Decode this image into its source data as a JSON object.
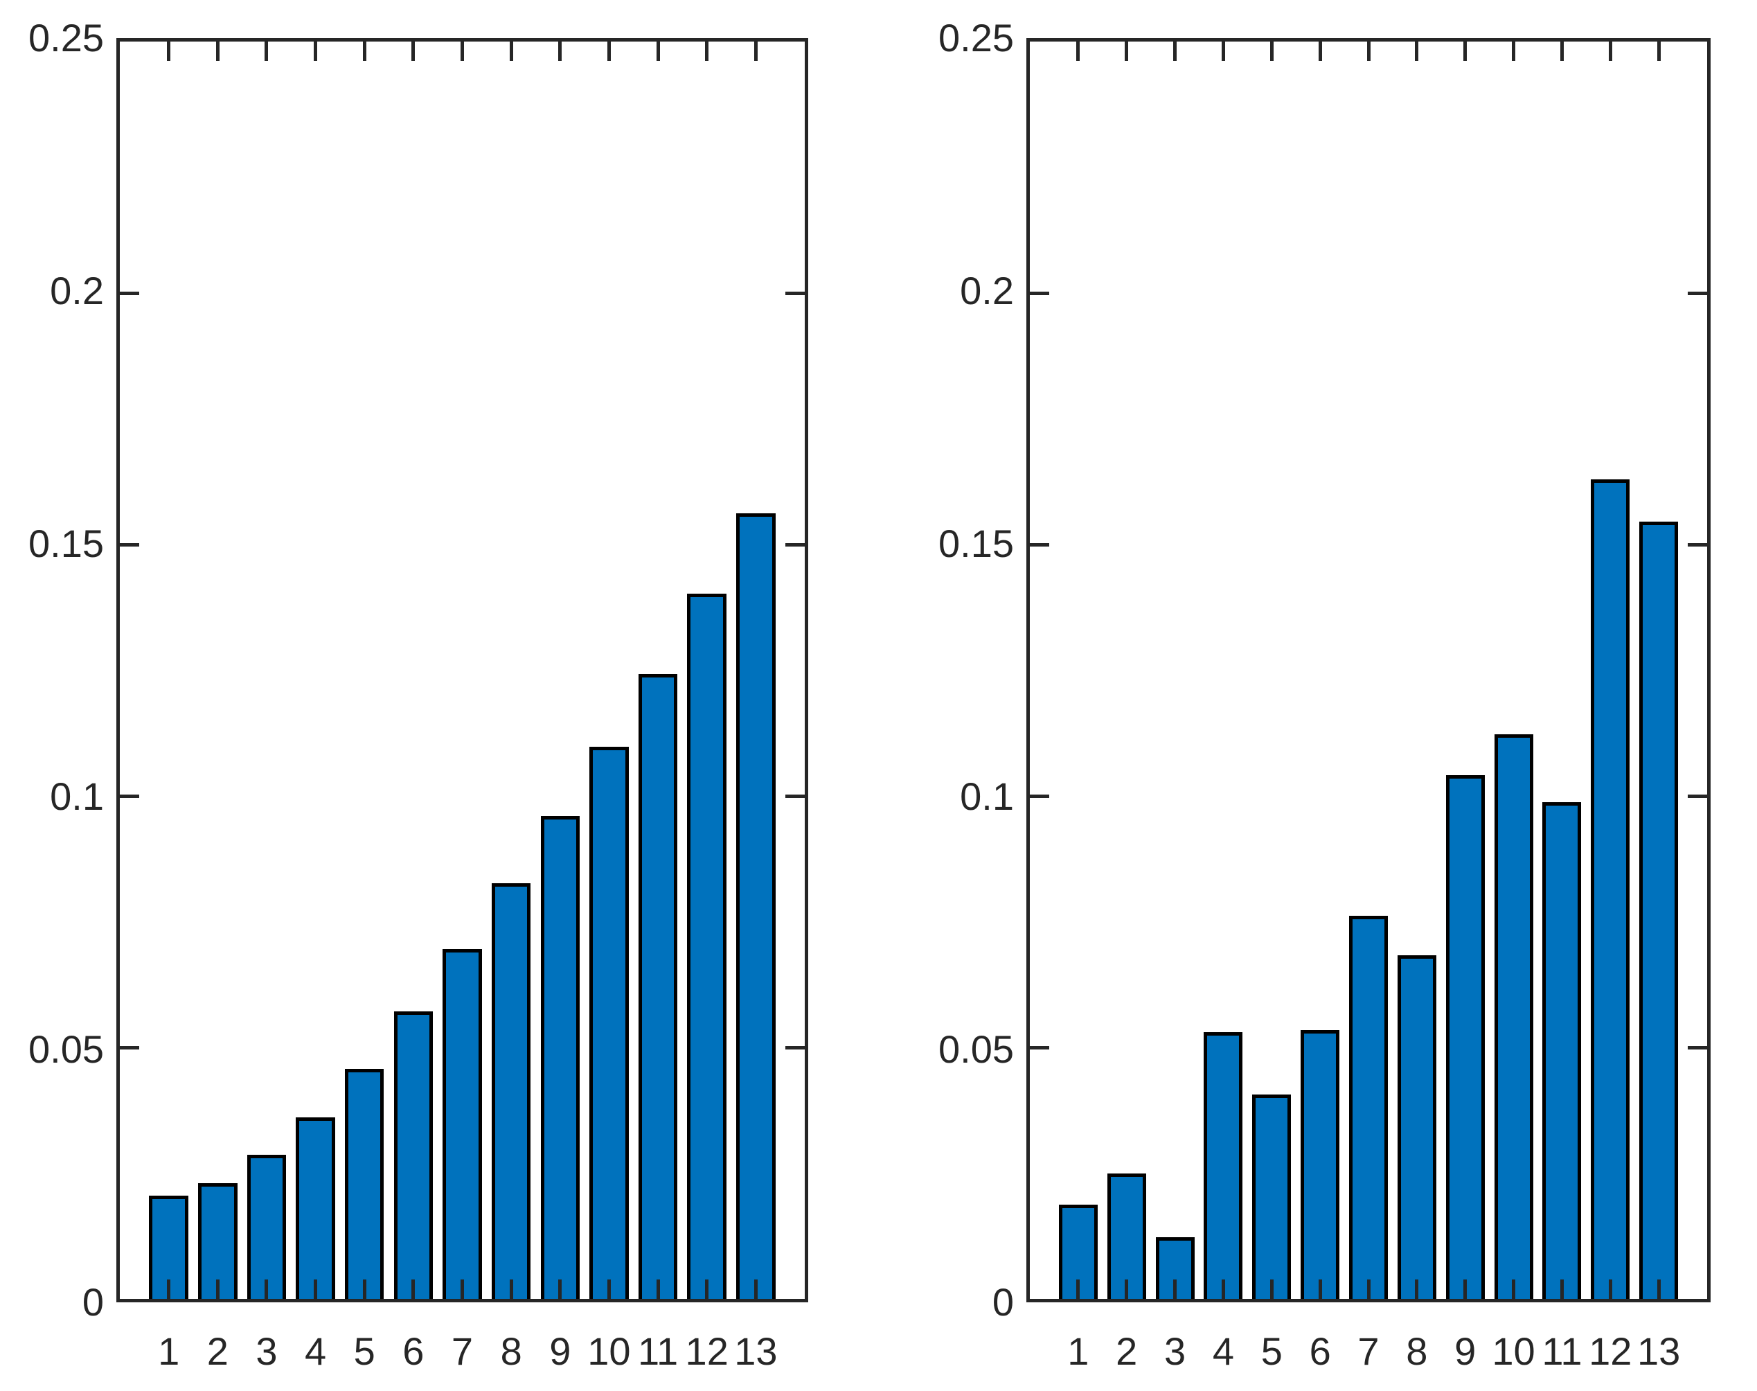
{
  "figure": {
    "background": "#ffffff",
    "axis_color": "#262626",
    "tick_label_color": "#262626",
    "bar_fill_color": "#0072BD",
    "bar_edge_color": "#000000"
  },
  "chart_data": [
    {
      "type": "bar",
      "title": "",
      "xlabel": "",
      "ylabel": "",
      "categories": [
        "1",
        "2",
        "3",
        "4",
        "5",
        "6",
        "7",
        "8",
        "9",
        "10",
        "11",
        "12",
        "13"
      ],
      "values": [
        0.0205,
        0.023,
        0.0286,
        0.0361,
        0.0457,
        0.0572,
        0.0695,
        0.0827,
        0.096,
        0.1098,
        0.1243,
        0.1402,
        0.1562
      ],
      "ylim": [
        0,
        0.25
      ],
      "xlim": [
        0,
        14
      ],
      "yticks": [
        0,
        0.05,
        0.1,
        0.15,
        0.2,
        0.25
      ],
      "ytick_labels": [
        "0",
        "0.05",
        "0.1",
        "0.15",
        "0.2",
        "0.25"
      ],
      "grid": false,
      "legend_position": "none",
      "box": true,
      "tick_direction": "in"
    },
    {
      "type": "bar",
      "title": "",
      "xlabel": "",
      "ylabel": "",
      "categories": [
        "1",
        "2",
        "3",
        "4",
        "5",
        "6",
        "7",
        "8",
        "9",
        "10",
        "11",
        "12",
        "13"
      ],
      "values": [
        0.0188,
        0.025,
        0.0122,
        0.053,
        0.0407,
        0.0535,
        0.0762,
        0.0683,
        0.1042,
        0.1123,
        0.0988,
        0.163,
        0.1545
      ],
      "ylim": [
        0,
        0.25
      ],
      "xlim": [
        0,
        14
      ],
      "yticks": [
        0,
        0.05,
        0.1,
        0.15,
        0.2,
        0.25
      ],
      "ytick_labels": [
        "0",
        "0.05",
        "0.1",
        "0.15",
        "0.2",
        "0.25"
      ],
      "grid": false,
      "legend_position": "none",
      "box": true,
      "tick_direction": "in"
    }
  ]
}
